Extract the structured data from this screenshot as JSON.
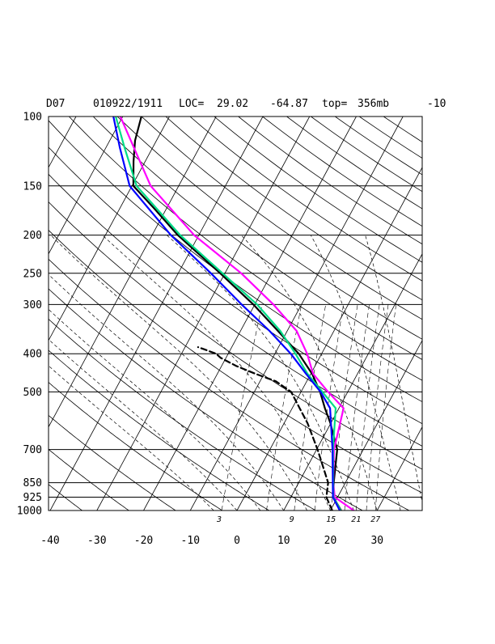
{
  "header": {
    "station": "D07",
    "datetime": "010922/1911",
    "loc_label": "LOC=",
    "lat": "29.02",
    "lon": "-64.87",
    "top_label": "top=",
    "top_value": "356mb",
    "extra": "-10"
  },
  "chart_data": {
    "type": "line",
    "title": "",
    "xlabel": "",
    "ylabel": "",
    "x_range": [
      -40,
      40
    ],
    "y_range_mb": [
      1000,
      100
    ],
    "y_scale": "log-pressure",
    "skew": "skew-T",
    "pressure_ticks": [
      1000,
      925,
      850,
      700,
      500,
      400,
      300,
      250,
      200,
      150,
      100
    ],
    "pressure_tick_labels": [
      "1000",
      "925",
      "850",
      "700",
      "500",
      "400",
      "300",
      "250",
      "200",
      "150",
      "100"
    ],
    "temperature_ticks": [
      -40,
      -30,
      -20,
      -10,
      0,
      10,
      20,
      30
    ],
    "temperature_tick_labels": [
      "-40",
      "-30",
      "-20",
      "-10",
      "0",
      "10",
      "20",
      "30"
    ],
    "mixing_ratio_labels": [
      {
        "value": 3,
        "label": "3"
      },
      {
        "value": 9,
        "label": "9"
      },
      {
        "value": 15,
        "label": "15"
      },
      {
        "value": 21,
        "label": "21"
      },
      {
        "value": 27,
        "label": "27"
      }
    ],
    "grid": true,
    "series": [
      {
        "color": "#000000",
        "style": "solid",
        "points": [
          [
            1000,
            22.3
          ],
          [
            925,
            19.1
          ],
          [
            850,
            17.5
          ],
          [
            700,
            14.4
          ],
          [
            600,
            9.9
          ],
          [
            550,
            7.0
          ],
          [
            500,
            4.1
          ],
          [
            450,
            0.3
          ],
          [
            400,
            -4.9
          ],
          [
            350,
            -12.0
          ],
          [
            300,
            -20.3
          ],
          [
            250,
            -31.0
          ],
          [
            200,
            -44.5
          ],
          [
            170,
            -53.0
          ],
          [
            150,
            -59.7
          ],
          [
            130,
            -62.5
          ],
          [
            115,
            -64.6
          ],
          [
            100,
            -66.0
          ]
        ]
      },
      {
        "color": "#000000",
        "style": "dashed",
        "points": [
          [
            1000,
            20.4
          ],
          [
            925,
            17.6
          ],
          [
            850,
            16.3
          ],
          [
            700,
            10.2
          ],
          [
            600,
            5.0
          ],
          [
            550,
            1.6
          ],
          [
            500,
            -2.1
          ],
          [
            470,
            -6.6
          ],
          [
            450,
            -11.8
          ],
          [
            430,
            -16.8
          ],
          [
            410,
            -21.1
          ],
          [
            400,
            -22.6
          ],
          [
            390,
            -25.6
          ],
          [
            385,
            -27.2
          ]
        ]
      },
      {
        "color": "#ff00ff",
        "style": "solid",
        "points": [
          [
            1000,
            25.0
          ],
          [
            925,
            19.4
          ],
          [
            850,
            17.4
          ],
          [
            700,
            13.7
          ],
          [
            550,
            11.0
          ],
          [
            500,
            5.8
          ],
          [
            450,
            0.5
          ],
          [
            400,
            -3.1
          ],
          [
            350,
            -8.0
          ],
          [
            300,
            -16.0
          ],
          [
            250,
            -26.5
          ],
          [
            200,
            -41.0
          ],
          [
            150,
            -56.0
          ],
          [
            120,
            -64.0
          ],
          [
            100,
            -70.5
          ]
        ]
      },
      {
        "color": "#00dd88",
        "style": "solid",
        "points": [
          [
            1000,
            22.2
          ],
          [
            925,
            19.1
          ],
          [
            850,
            17.4
          ],
          [
            700,
            13.5
          ],
          [
            550,
            9.3
          ],
          [
            500,
            4.6
          ],
          [
            450,
            -0.7
          ],
          [
            400,
            -5.6
          ],
          [
            350,
            -11.5
          ],
          [
            300,
            -19.5
          ],
          [
            250,
            -30.5
          ],
          [
            200,
            -44.0
          ],
          [
            150,
            -59.0
          ],
          [
            120,
            -66.0
          ],
          [
            100,
            -71.5
          ]
        ]
      },
      {
        "color": "#0000ff",
        "style": "solid",
        "points": [
          [
            1000,
            22.0
          ],
          [
            925,
            19.0
          ],
          [
            850,
            17.3
          ],
          [
            700,
            13.4
          ],
          [
            550,
            8.1
          ],
          [
            500,
            4.2
          ],
          [
            450,
            -1.0
          ],
          [
            400,
            -6.6
          ],
          [
            350,
            -13.8
          ],
          [
            300,
            -22.8
          ],
          [
            250,
            -33.0
          ],
          [
            200,
            -46.0
          ],
          [
            150,
            -60.5
          ],
          [
            120,
            -67.0
          ],
          [
            100,
            -72.0
          ]
        ]
      }
    ]
  }
}
